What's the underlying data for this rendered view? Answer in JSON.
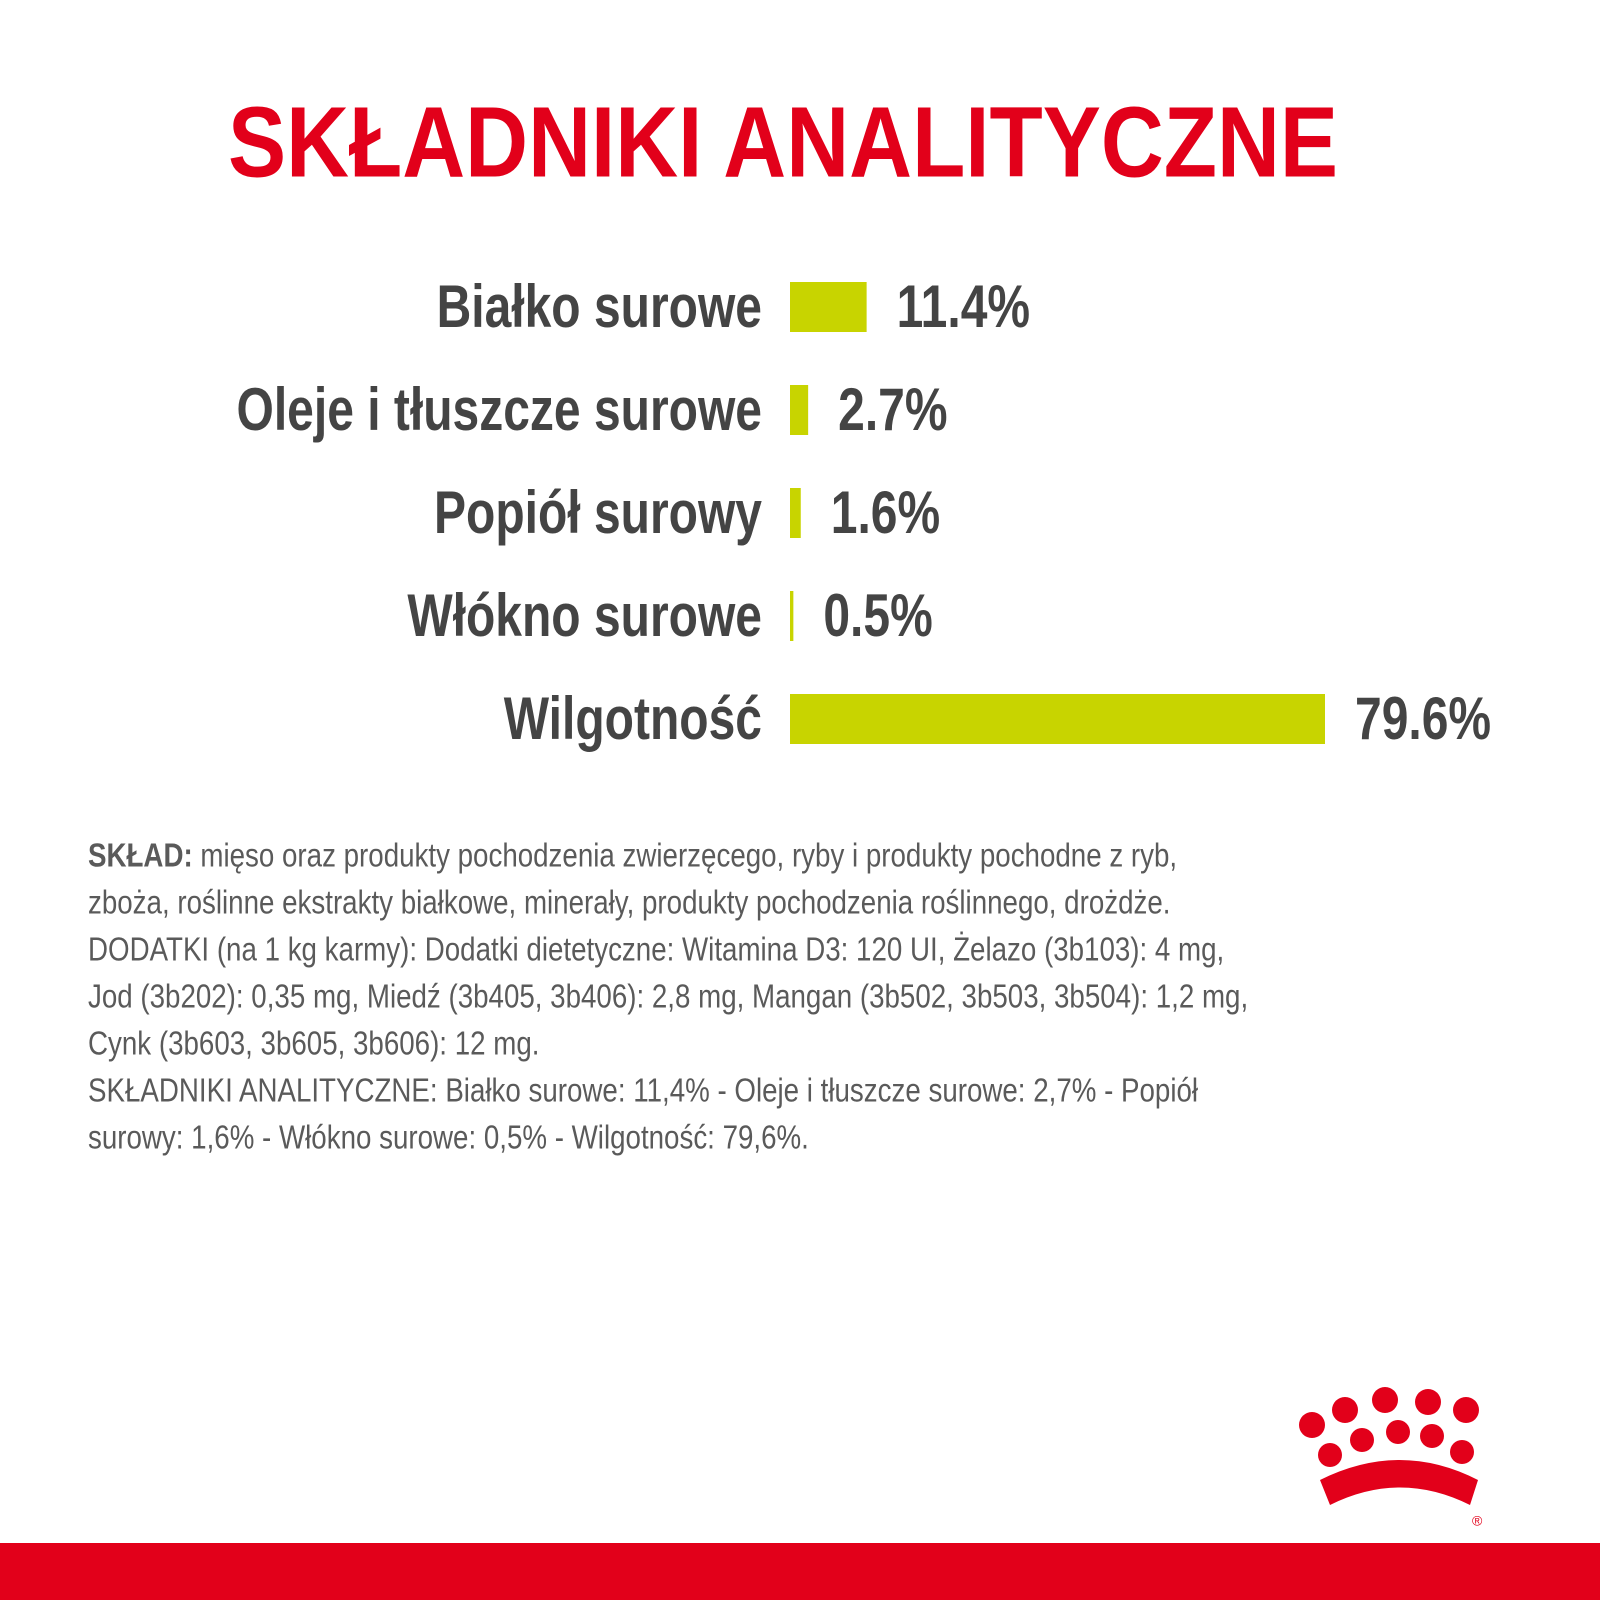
{
  "chart_data": {
    "type": "bar",
    "orientation": "horizontal",
    "title": "SKŁADNIKI ANALITYCZNE",
    "categories": [
      "Białko surowe",
      "Oleje i tłuszcze surowe",
      "Popiół surowy",
      "Włókno surowe",
      "Wilgotność"
    ],
    "values": [
      11.4,
      2.7,
      1.6,
      0.5,
      79.6
    ],
    "value_labels": [
      "11.4%",
      "2.7%",
      "1.6%",
      "0.5%",
      "79.6%"
    ],
    "color": "#c8d400"
  },
  "composition": {
    "label": "SKŁAD:",
    "lines": [
      " mięso oraz produkty pochodzenia zwierzęcego, ryby i produkty pochodne z ryb,",
      "zboża, roślinne ekstrakty białkowe, minerały, produkty pochodzenia roślinnego, drożdże.",
      "DODATKI (na 1 kg karmy): Dodatki dietetyczne: Witamina D3: 120 UI, Żelazo (3b103): 4 mg,",
      "Jod (3b202): 0,35 mg, Miedź (3b405, 3b406): 2,8 mg, Mangan (3b502, 3b503, 3b504): 1,2 mg,",
      "Cynk (3b603, 3b605, 3b606): 12 mg.",
      "SKŁADNIKI ANALITYCZNE: Białko surowe: 11,4% - Oleje i tłuszcze surowe: 2,7% - Popiół",
      "surowy: 1,6% - Włókno surowe: 0,5% - Wilgotność: 79,6%."
    ]
  },
  "logo": {
    "mark": "®"
  }
}
